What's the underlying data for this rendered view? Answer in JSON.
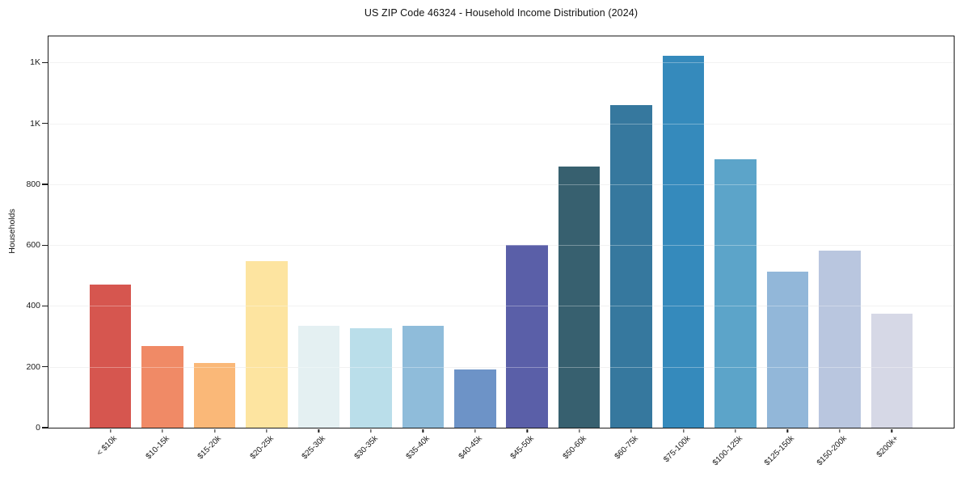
{
  "chart_data": {
    "type": "bar",
    "title": "US ZIP Code 46324 - Household Income Distribution (2024)",
    "xlabel": "",
    "ylabel": "Households",
    "ylim": [
      0,
      1286
    ],
    "grid": "horizontal-only",
    "legend": "none",
    "background": "#ffffff",
    "spine_color": "#1b1b1b",
    "gridline_color": "#ececec",
    "bar_width_fraction": 0.8,
    "yticks": [
      {
        "value": 0,
        "label": "0"
      },
      {
        "value": 200,
        "label": "200"
      },
      {
        "value": 400,
        "label": "400"
      },
      {
        "value": 600,
        "label": "600"
      },
      {
        "value": 800,
        "label": "800"
      },
      {
        "value": 1000,
        "label": "1K"
      },
      {
        "value": 1200,
        "label": "1K"
      }
    ],
    "categories": [
      "< $10k",
      "$10-15k",
      "$15-20k",
      "$20-25k",
      "$25-30k",
      "$30-35k",
      "$35-40k",
      "$40-45k",
      "$45-50k",
      "$50-60k",
      "$60-75k",
      "$75-100k",
      "$100-125k",
      "$125-150k",
      "$150-200k",
      "$200k+"
    ],
    "values": [
      470,
      268,
      212,
      547,
      336,
      327,
      336,
      190,
      600,
      858,
      1060,
      1223,
      883,
      514,
      583,
      375
    ],
    "colors": [
      "#d6564f",
      "#f08a66",
      "#fab878",
      "#fde4a0",
      "#e4f0f2",
      "#badeea",
      "#8fbcda",
      "#6d93c7",
      "#5a5fa8",
      "#37606f",
      "#36789e",
      "#358abc",
      "#5ca4c9",
      "#92b7d9",
      "#b9c6df",
      "#d6d8e6"
    ]
  }
}
